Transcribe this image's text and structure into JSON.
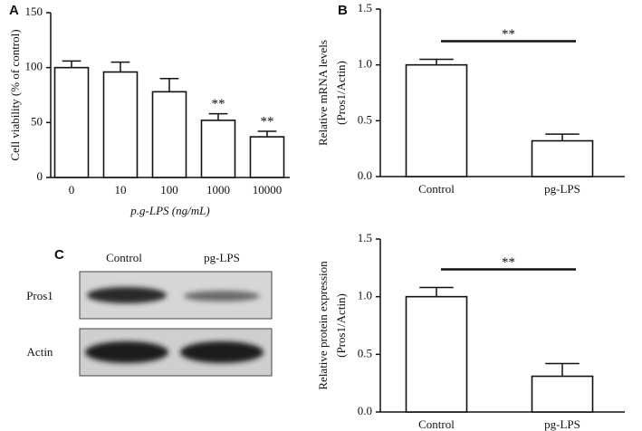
{
  "chart_data": [
    {
      "type": "bar",
      "panel": "A",
      "ylabel": [
        "Cell viability (% of control)"
      ],
      "xlabel": "p.g-LPS (ng/mL)",
      "categories": [
        "0",
        "10",
        "100",
        "1000",
        "10000"
      ],
      "values": [
        100,
        96,
        78,
        52,
        37
      ],
      "errors": [
        6,
        9,
        12,
        6,
        5
      ],
      "annotations": [
        null,
        null,
        null,
        "**",
        "**"
      ],
      "ylim": [
        0,
        150
      ],
      "yticks": [
        0,
        50,
        100,
        150
      ]
    },
    {
      "type": "bar",
      "panel": "B",
      "ylabel": [
        "Relative mRNA levels",
        "(Pros1/Actin)"
      ],
      "categories": [
        "Control",
        "pg-LPS"
      ],
      "values": [
        1.0,
        0.32
      ],
      "errors": [
        0.05,
        0.06
      ],
      "significance": "**",
      "ylim": [
        0,
        1.5
      ],
      "yticks": [
        {
          "value": 0,
          "label": "0.0"
        },
        {
          "value": 0.5,
          "label": "0.5"
        },
        {
          "value": 1,
          "label": "1.0"
        },
        {
          "value": 1.5,
          "label": "1.5"
        }
      ]
    },
    {
      "type": "bar",
      "ylabel": [
        "Relative protein expression",
        "(Pros1/Actin)"
      ],
      "categories": [
        "Control",
        "pg-LPS"
      ],
      "values": [
        1.0,
        0.31
      ],
      "errors": [
        0.08,
        0.11
      ],
      "significance": "**",
      "ylim": [
        0,
        1.5
      ],
      "yticks": [
        {
          "value": 0,
          "label": "0.0"
        },
        {
          "value": 0.5,
          "label": "0.5"
        },
        {
          "value": 1,
          "label": "1.0"
        },
        {
          "value": 1.5,
          "label": "1.5"
        }
      ]
    }
  ],
  "blot": {
    "panel": "C",
    "lanes": [
      "Control",
      "pg-LPS"
    ],
    "rows": [
      "Pros1",
      "Actin"
    ]
  }
}
